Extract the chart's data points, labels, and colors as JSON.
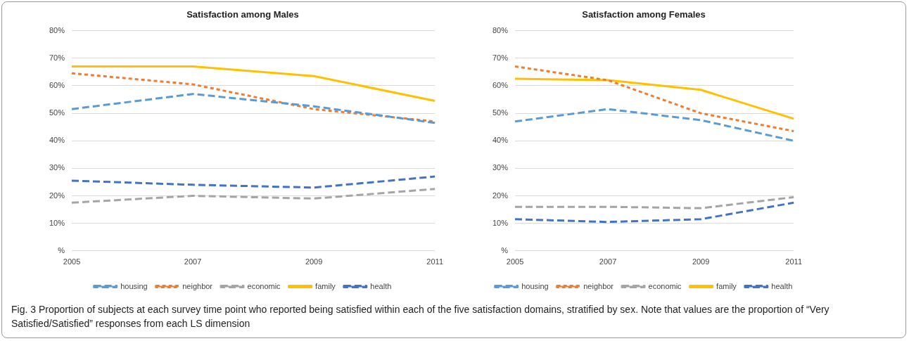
{
  "chart_data": [
    {
      "type": "line",
      "title": "Satisfaction among Males",
      "categories": [
        "2005",
        "2007",
        "2009",
        "2011"
      ],
      "series": [
        {
          "name": "housing",
          "color": "#5b9bd5",
          "line_style": "dashed",
          "values": [
            51.5,
            57,
            52.5,
            46.5
          ]
        },
        {
          "name": "neighbor",
          "color": "#ed7d31",
          "line_style": "dotted",
          "values": [
            64.5,
            60.5,
            51.5,
            47
          ]
        },
        {
          "name": "economic",
          "color": "#a5a5a5",
          "line_style": "dashed",
          "values": [
            17.5,
            20,
            19,
            22.5
          ]
        },
        {
          "name": "family",
          "color": "#ffc000",
          "line_style": "solid",
          "values": [
            67,
            67,
            63.5,
            54.5
          ]
        },
        {
          "name": "health",
          "color": "#4472c4",
          "line_style": "dashed",
          "values": [
            25.5,
            24,
            23,
            27
          ]
        }
      ],
      "ylim": [
        0,
        80
      ],
      "yticks": [
        {
          "value": 0,
          "label": "%"
        },
        {
          "value": 10,
          "label": "10%"
        },
        {
          "value": 20,
          "label": "20%"
        },
        {
          "value": 30,
          "label": "30%"
        },
        {
          "value": 40,
          "label": "40%"
        },
        {
          "value": 50,
          "label": "50%"
        },
        {
          "value": 60,
          "label": "60%"
        },
        {
          "value": 70,
          "label": "70%"
        },
        {
          "value": 80,
          "label": "80%"
        }
      ],
      "grid": "y",
      "legend": "bottom",
      "marker": "none",
      "annotations": [
        "Fig. 3 Proportion of subjects at each survey time point who reported being satisfied within each of the five satisfaction domains, stratified by sex. Note that values are the proportion of “Very Satisfied/Satisfied” responses from each LS dimension"
      ]
    },
    {
      "type": "line",
      "title": "Satisfaction among Females",
      "categories": [
        "2005",
        "2007",
        "2009",
        "2011"
      ],
      "series": [
        {
          "name": "housing",
          "color": "#5b9bd5",
          "line_style": "dashed",
          "values": [
            47,
            51.5,
            47.5,
            40
          ]
        },
        {
          "name": "neighbor",
          "color": "#ed7d31",
          "line_style": "dotted",
          "values": [
            67,
            62,
            50,
            43.5
          ]
        },
        {
          "name": "economic",
          "color": "#a5a5a5",
          "line_style": "dashed",
          "values": [
            16,
            16,
            15.5,
            19.5
          ]
        },
        {
          "name": "family",
          "color": "#ffc000",
          "line_style": "solid",
          "values": [
            62.5,
            62,
            58.5,
            48
          ]
        },
        {
          "name": "health",
          "color": "#4472c4",
          "line_style": "dashed",
          "values": [
            11.5,
            10.5,
            11.5,
            17.5
          ]
        }
      ],
      "ylim": [
        0,
        80
      ],
      "yticks": [
        {
          "value": 0,
          "label": "%"
        },
        {
          "value": 10,
          "label": "10%"
        },
        {
          "value": 20,
          "label": "20%"
        },
        {
          "value": 30,
          "label": "30%"
        },
        {
          "value": 40,
          "label": "40%"
        },
        {
          "value": 50,
          "label": "50%"
        },
        {
          "value": 60,
          "label": "60%"
        },
        {
          "value": 70,
          "label": "70%"
        },
        {
          "value": 80,
          "label": "80%"
        }
      ],
      "grid": "y",
      "legend": "bottom",
      "marker": "none"
    }
  ]
}
